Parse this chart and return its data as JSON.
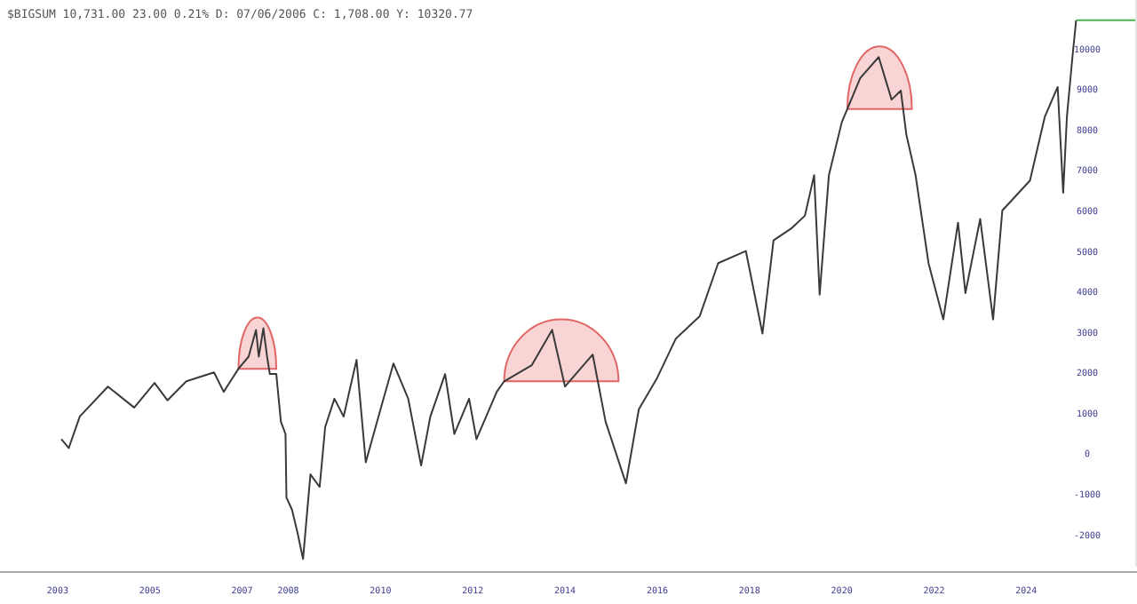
{
  "chart_data": {
    "type": "line",
    "title": "$BIGSUM 10,731.00 23.00 0.21% D: 07/06/2006 C: 1,708.00 Y: 10320.77",
    "xlim": [
      2001.75,
      2026.4
    ],
    "xticks": [
      2003,
      2005,
      2007,
      2008,
      2010,
      2012,
      2014,
      2016,
      2018,
      2020,
      2022,
      2024
    ],
    "ylim": [
      -2800,
      11200
    ],
    "yticks": [
      -2000,
      -1000,
      0,
      1000,
      2000,
      3000,
      4000,
      5000,
      6000,
      7000,
      8000,
      9000,
      10000
    ],
    "grid": false,
    "series": [
      {
        "color": "#3a3a3a",
        "x": [
          2003.08,
          2003.24,
          2003.48,
          2004.09,
          2004.66,
          2005.1,
          2005.38,
          2005.79,
          2006.39,
          2006.6,
          2006.92,
          2007.14,
          2007.3,
          2007.36,
          2007.46,
          2007.54,
          2007.6,
          2007.74,
          2007.84,
          2007.94,
          2007.96,
          2008.08,
          2008.2,
          2008.32,
          2008.48,
          2008.68,
          2008.8,
          2009.0,
          2009.2,
          2009.48,
          2009.68,
          2010.0,
          2010.28,
          2010.6,
          2010.88,
          2011.08,
          2011.4,
          2011.6,
          2011.92,
          2012.08,
          2012.52,
          2012.68,
          2013.28,
          2013.72,
          2014.0,
          2014.6,
          2014.88,
          2015.32,
          2015.6,
          2016.0,
          2016.4,
          2016.92,
          2017.32,
          2017.92,
          2018.28,
          2018.52,
          2018.92,
          2019.2,
          2019.4,
          2019.52,
          2019.72,
          2020.0,
          2020.4,
          2020.8,
          2021.08,
          2021.28,
          2021.4,
          2021.6,
          2021.88,
          2022.2,
          2022.52,
          2022.68,
          2023.0,
          2023.28,
          2023.48,
          2024.08,
          2024.4,
          2024.68,
          2024.8,
          2024.88,
          2025.0,
          2025.08
        ],
        "values": [
          350,
          130,
          910,
          1650,
          1130,
          1740,
          1310,
          1780,
          2000,
          1520,
          2090,
          2390,
          3050,
          2390,
          3090,
          2390,
          1960,
          1960,
          780,
          480,
          -1090,
          -1390,
          -1960,
          -2610,
          -520,
          -830,
          650,
          1350,
          910,
          2310,
          -220,
          1090,
          2220,
          1350,
          -300,
          910,
          1960,
          480,
          1350,
          350,
          1520,
          1780,
          2180,
          3050,
          1650,
          2440,
          780,
          -740,
          1090,
          1870,
          2830,
          3390,
          4700,
          5000,
          2960,
          5260,
          5570,
          5870,
          6870,
          3920,
          6870,
          8180,
          9270,
          9790,
          8740,
          8960,
          7870,
          6870,
          4700,
          3310,
          5700,
          3960,
          5790,
          3310,
          6000,
          6740,
          8310,
          9050,
          6440,
          8310,
          9790,
          10700
        ]
      },
      {
        "color": "#4caf50",
        "x": [
          2025.08,
          2026.4
        ],
        "values": [
          10700,
          10700
        ]
      }
    ]
  }
}
